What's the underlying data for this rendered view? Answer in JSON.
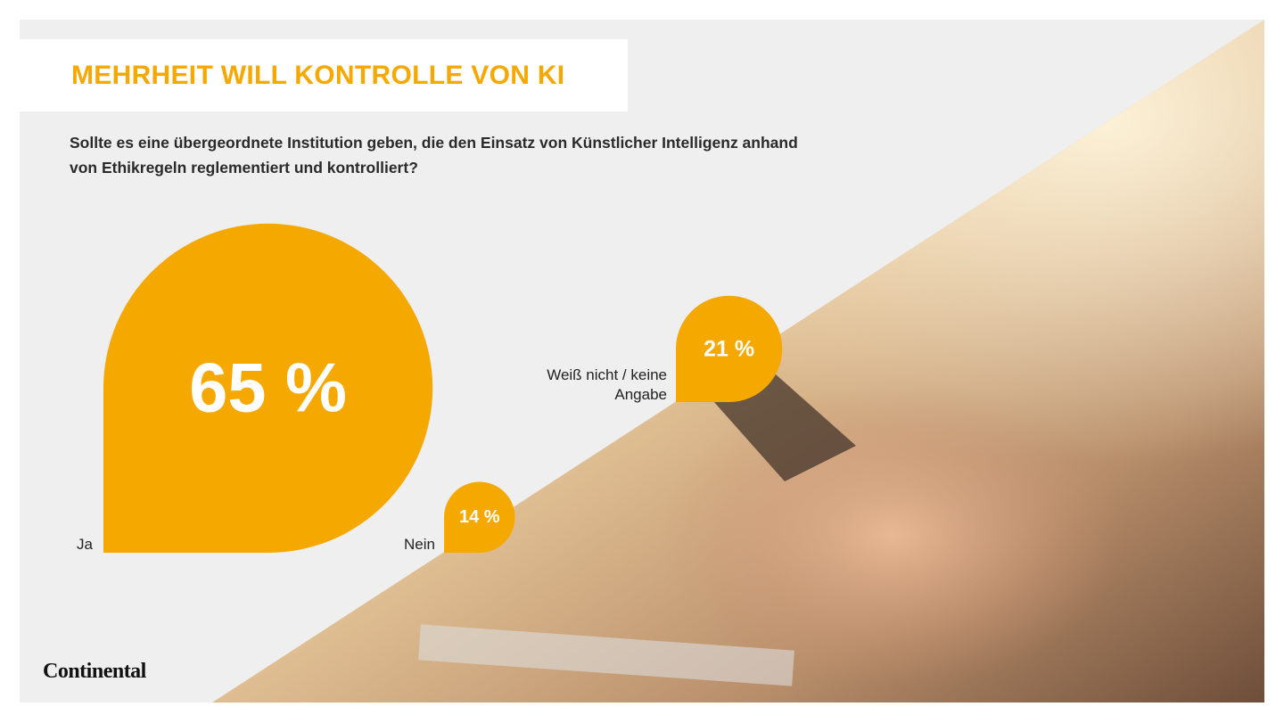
{
  "chart_data": {
    "type": "drop",
    "title": "MEHRHEIT WILL KONTROLLE VON KI",
    "subtitle": "Sollte es eine übergeordnete Institution geben, die den Einsatz von Künstlicher Intelligenz anhand von Ethikregeln reglementiert und kontrolliert?",
    "categories": [
      "Ja",
      "Nein",
      "Weiß nicht / keine Angabe"
    ],
    "values": [
      65,
      14,
      21
    ],
    "value_labels": [
      "65 %",
      "14 %",
      "21 %"
    ],
    "color": "#f5a800"
  },
  "logo": "Continental"
}
